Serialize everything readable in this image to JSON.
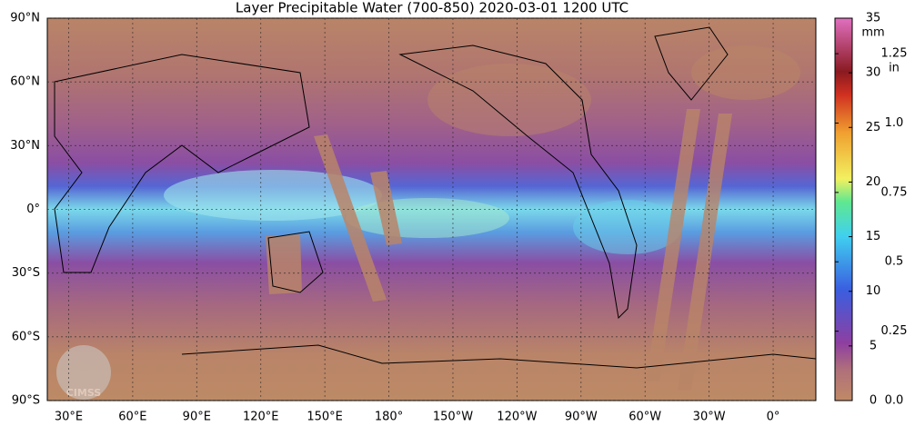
{
  "title": "Layer Precipitable Water (700-850)  2020-03-01 1200 UTC",
  "map": {
    "lat_range": [
      -90,
      90
    ],
    "lon_range": [
      20,
      380
    ],
    "lat_ticks": [
      {
        "value": 90,
        "label": "90°N"
      },
      {
        "value": 60,
        "label": "60°N"
      },
      {
        "value": 30,
        "label": "30°N"
      },
      {
        "value": 0,
        "label": "0°"
      },
      {
        "value": -30,
        "label": "30°S"
      },
      {
        "value": -60,
        "label": "60°S"
      },
      {
        "value": -90,
        "label": "90°S"
      }
    ],
    "lon_ticks": [
      {
        "value": 30,
        "label": "30°E"
      },
      {
        "value": 60,
        "label": "60°E"
      },
      {
        "value": 90,
        "label": "90°E"
      },
      {
        "value": 120,
        "label": "120°E"
      },
      {
        "value": 150,
        "label": "150°E"
      },
      {
        "value": 180,
        "label": "180°"
      },
      {
        "value": 210,
        "label": "150°W"
      },
      {
        "value": 240,
        "label": "120°W"
      },
      {
        "value": 270,
        "label": "90°W"
      },
      {
        "value": 300,
        "label": "60°W"
      },
      {
        "value": 330,
        "label": "30°W"
      },
      {
        "value": 360,
        "label": "0°"
      }
    ]
  },
  "colorbar": {
    "mm_unit": "mm",
    "in_unit": "in",
    "mm_range": [
      0,
      35
    ],
    "in_range": [
      0,
      1.378
    ],
    "mm_ticks": [
      0,
      5,
      10,
      15,
      20,
      25,
      30,
      35
    ],
    "in_ticks": [
      {
        "value": 0,
        "label": "0.0"
      },
      0.25,
      0.5,
      0.75,
      {
        "value": 1,
        "label": "1.0"
      },
      1.25
    ]
  },
  "logo": "CIMSS"
}
